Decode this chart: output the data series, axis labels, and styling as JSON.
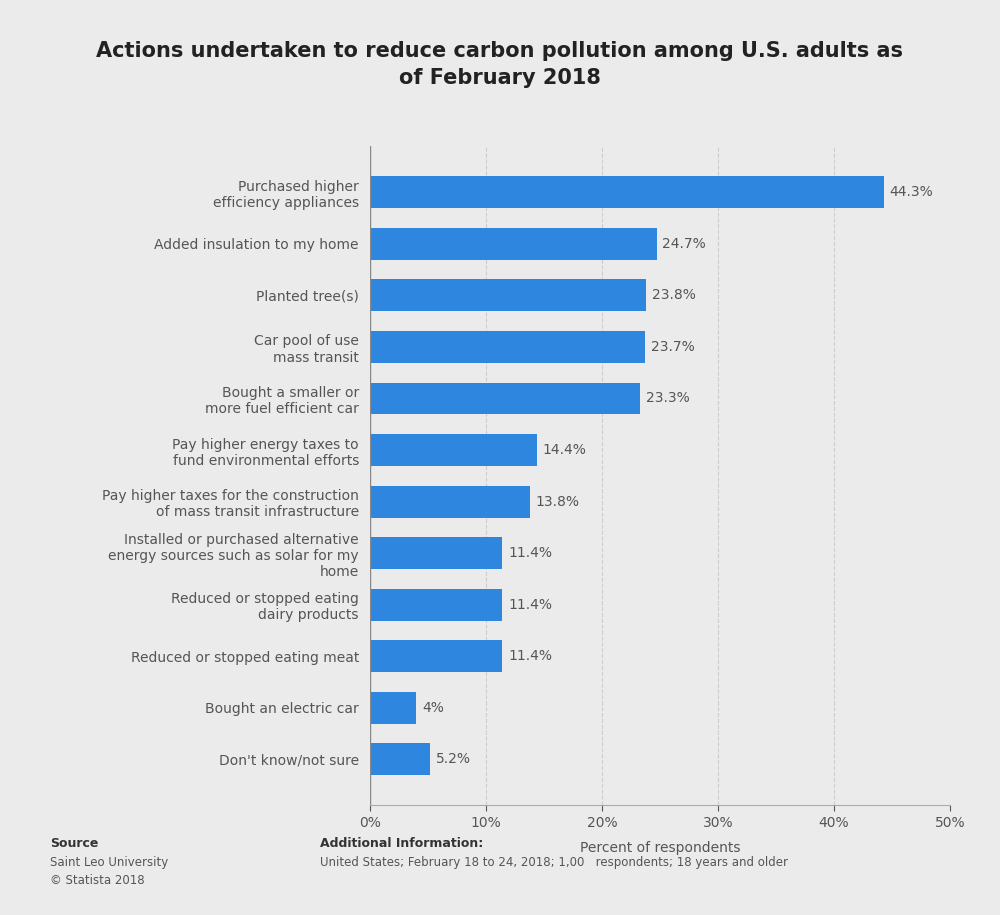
{
  "title": "Actions undertaken to reduce carbon pollution among U.S. adults as\nof February 2018",
  "categories": [
    "Purchased higher\nefficiency appliances",
    "Added insulation to my home",
    "Planted tree(s)",
    "Car pool of use\nmass transit",
    "Bought a smaller or\nmore fuel efficient car",
    "Pay higher energy taxes to\nfund environmental efforts",
    "Pay higher taxes for the construction\nof mass transit infrastructure",
    "Installed or purchased alternative\nenergy sources such as solar for my\nhome",
    "Reduced or stopped eating\ndairy products",
    "Reduced or stopped eating meat",
    "Bought an electric car",
    "Don't know/not sure"
  ],
  "values": [
    44.3,
    24.7,
    23.8,
    23.7,
    23.3,
    14.4,
    13.8,
    11.4,
    11.4,
    11.4,
    4.0,
    5.2
  ],
  "labels": [
    "44.3%",
    "24.7%",
    "23.8%",
    "23.7%",
    "23.3%",
    "14.4%",
    "13.8%",
    "11.4%",
    "11.4%",
    "11.4%",
    "4%",
    "5.2%"
  ],
  "bar_color": "#2e86de",
  "background_color": "#ebebeb",
  "xlabel": "Percent of respondents",
  "xlim": [
    0,
    50
  ],
  "xticks": [
    0,
    10,
    20,
    30,
    40,
    50
  ],
  "xticklabels": [
    "0%",
    "10%",
    "20%",
    "30%",
    "40%",
    "50%"
  ],
  "source_label": "Source",
  "source_body": "Saint Leo University\n© Statista 2018",
  "additional_label": "Additional Information:",
  "additional_body": "United States; February 18 to 24, 2018; 1,00  respondents; 18 years and older",
  "title_fontsize": 15,
  "label_fontsize": 10,
  "tick_fontsize": 10,
  "value_fontsize": 10,
  "bar_height": 0.62
}
